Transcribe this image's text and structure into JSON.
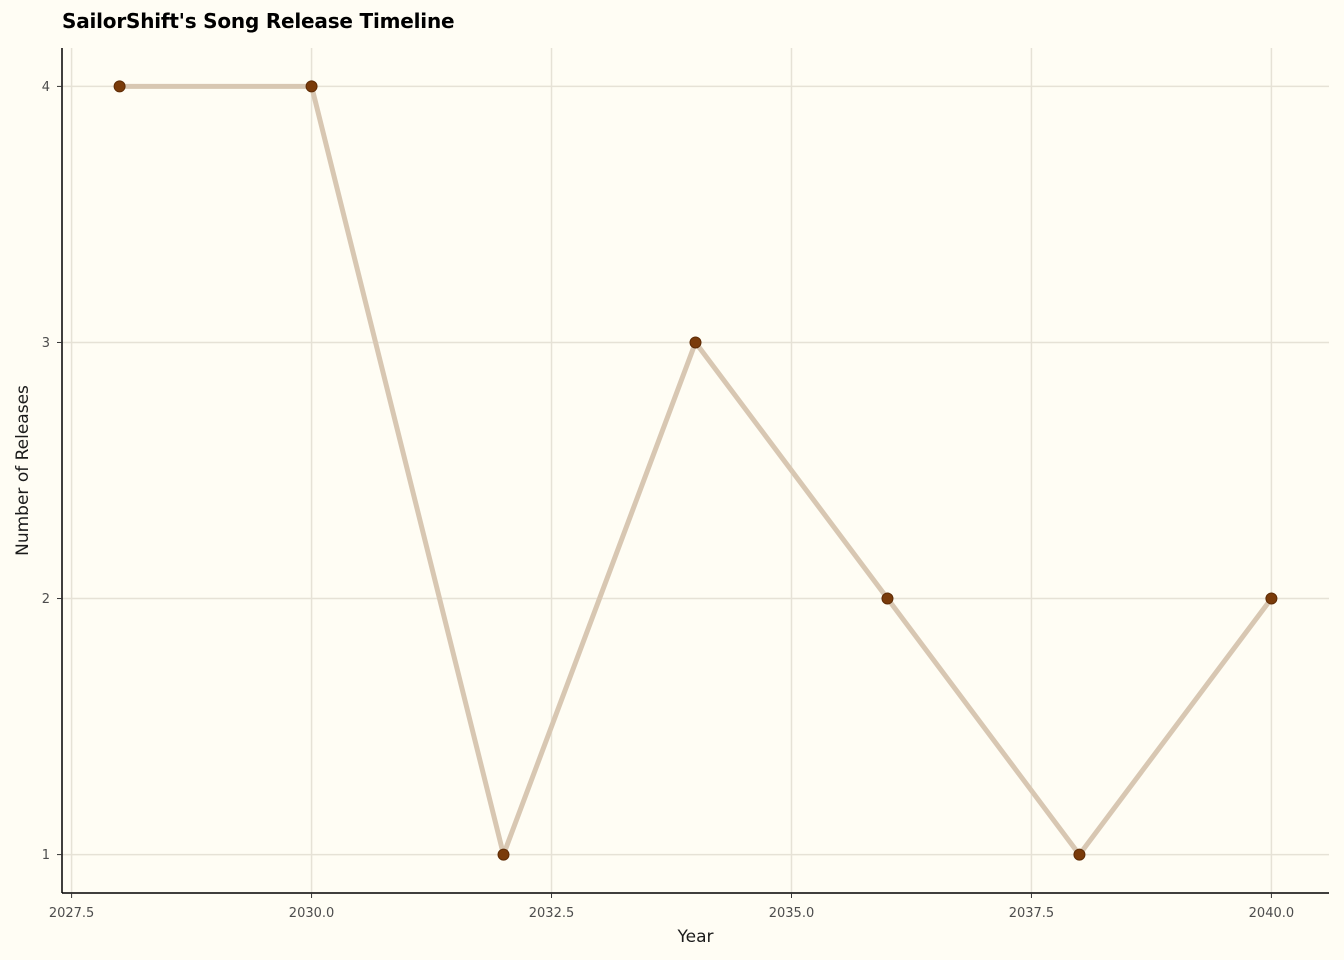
{
  "chart_data": {
    "type": "line",
    "title": "SailorShift's Song Release Timeline",
    "xlabel": "Year",
    "ylabel": "Number of Releases",
    "x": [
      2028,
      2030,
      2032,
      2034,
      2036,
      2038,
      2040
    ],
    "series": [
      {
        "values": [
          4,
          4,
          1,
          3,
          2,
          1,
          2
        ]
      }
    ],
    "xlim": [
      2027.4,
      2040.6
    ],
    "ylim": [
      0.85,
      4.15
    ],
    "xticks": [
      2027.5,
      2030.0,
      2032.5,
      2035.0,
      2037.5,
      2040.0
    ],
    "xtick_labels": [
      "2027.5",
      "2030.0",
      "2032.5",
      "2035.0",
      "2037.5",
      "2040.0"
    ],
    "yticks": [
      1,
      2,
      3,
      4
    ],
    "ytick_labels": [
      "1",
      "2",
      "3",
      "4"
    ],
    "grid": true,
    "colors": {
      "background": "#fffdf4",
      "grid": "#e6e2d6",
      "line": "#d8c7b2",
      "point": "#7a3b0a",
      "axis": "#000000"
    }
  }
}
